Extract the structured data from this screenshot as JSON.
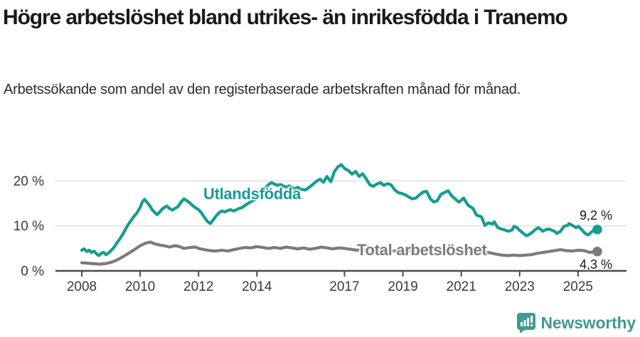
{
  "header": {
    "title": "Högre arbetslöshet bland utrikes- än inrikesfödda i Tranemo",
    "subtitle": "Arbetssökande som andel av den registerbaserade arbetskraften månad för månad."
  },
  "footer": {
    "brand": "Newsworthy"
  },
  "colors": {
    "foreign_line": "#169c91",
    "total_line": "#7b7b7b",
    "grid": "#e2e2e2",
    "axis": "#4a4a4a",
    "tick_label": "#3a3a3a",
    "title_text": "#1a1a1a",
    "brand_teal": "#3f9a92"
  },
  "chart_data": {
    "type": "line",
    "title": "Högre arbetslöshet bland utrikes- än inrikesfödda i Tranemo",
    "subtitle": "Arbetssökande som andel av den registerbaserade arbetskraften månad för månad.",
    "grid": "horizontal-only",
    "legend": "inline-labels",
    "x_axis": {
      "range": [
        2007.55,
        2026.1
      ],
      "ticks": [
        {
          "year": 2008,
          "label": "2008"
        },
        {
          "year": 2010,
          "label": "2010"
        },
        {
          "year": 2012,
          "label": "2012"
        },
        {
          "year": 2014,
          "label": "2014"
        },
        {
          "year": 2017,
          "label": "2017"
        },
        {
          "year": 2019,
          "label": "2019"
        },
        {
          "year": 2021,
          "label": "2021"
        },
        {
          "year": 2023,
          "label": "2023"
        },
        {
          "year": 2025,
          "label": "2025"
        }
      ]
    },
    "y_axis": {
      "unit": "%",
      "range": [
        0,
        24
      ],
      "ticks": [
        {
          "value": 0,
          "label": "0 %"
        },
        {
          "value": 10,
          "label": "10 %"
        },
        {
          "value": 20,
          "label": "20 %"
        }
      ]
    },
    "series": [
      {
        "name": "Utlandsfödda",
        "label": "Utlandsfödda",
        "color": "#169c91",
        "end_value": 9.2,
        "end_label": "9,2 %",
        "points": [
          [
            2008.0,
            4.6
          ],
          [
            2008.08,
            4.9
          ],
          [
            2008.17,
            4.3
          ],
          [
            2008.25,
            4.6
          ],
          [
            2008.33,
            4.1
          ],
          [
            2008.42,
            4.4
          ],
          [
            2008.5,
            3.8
          ],
          [
            2008.58,
            3.4
          ],
          [
            2008.67,
            3.9
          ],
          [
            2008.75,
            4.1
          ],
          [
            2008.83,
            3.6
          ],
          [
            2008.92,
            4.0
          ],
          [
            2009.0,
            4.5
          ],
          [
            2009.1,
            5.2
          ],
          [
            2009.2,
            6.2
          ],
          [
            2009.3,
            7.1
          ],
          [
            2009.4,
            8.1
          ],
          [
            2009.5,
            9.3
          ],
          [
            2009.6,
            10.4
          ],
          [
            2009.7,
            11.3
          ],
          [
            2009.8,
            12.2
          ],
          [
            2009.9,
            13.0
          ],
          [
            2010.0,
            14.1
          ],
          [
            2010.08,
            15.4
          ],
          [
            2010.15,
            15.9
          ],
          [
            2010.25,
            15.1
          ],
          [
            2010.33,
            14.5
          ],
          [
            2010.42,
            13.5
          ],
          [
            2010.5,
            13.0
          ],
          [
            2010.58,
            12.5
          ],
          [
            2010.67,
            13.1
          ],
          [
            2010.75,
            13.7
          ],
          [
            2010.83,
            14.1
          ],
          [
            2010.92,
            14.4
          ],
          [
            2011.0,
            13.9
          ],
          [
            2011.1,
            13.5
          ],
          [
            2011.2,
            13.9
          ],
          [
            2011.3,
            14.3
          ],
          [
            2011.4,
            15.3
          ],
          [
            2011.5,
            16.0
          ],
          [
            2011.6,
            15.6
          ],
          [
            2011.7,
            15.1
          ],
          [
            2011.8,
            14.5
          ],
          [
            2011.9,
            14.0
          ],
          [
            2012.0,
            13.6
          ],
          [
            2012.1,
            12.9
          ],
          [
            2012.2,
            11.9
          ],
          [
            2012.3,
            11.0
          ],
          [
            2012.4,
            10.5
          ],
          [
            2012.5,
            11.3
          ],
          [
            2012.6,
            12.2
          ],
          [
            2012.7,
            12.9
          ],
          [
            2012.8,
            13.3
          ],
          [
            2012.9,
            13.1
          ],
          [
            2013.0,
            13.4
          ],
          [
            2013.1,
            13.6
          ],
          [
            2013.2,
            13.3
          ],
          [
            2013.3,
            13.6
          ],
          [
            2013.4,
            13.9
          ],
          [
            2013.5,
            14.1
          ],
          [
            2013.6,
            14.6
          ],
          [
            2013.7,
            15.0
          ],
          [
            2013.8,
            15.4
          ],
          [
            2013.9,
            15.7
          ],
          [
            2014.0,
            16.1
          ],
          [
            2014.1,
            16.9
          ],
          [
            2014.2,
            17.7
          ],
          [
            2014.3,
            18.5
          ],
          [
            2014.4,
            19.2
          ],
          [
            2014.5,
            19.6
          ],
          [
            2014.6,
            19.3
          ],
          [
            2014.7,
            19.0
          ],
          [
            2014.8,
            19.2
          ],
          [
            2014.9,
            18.9
          ],
          [
            2015.0,
            18.6
          ],
          [
            2015.1,
            18.9
          ],
          [
            2015.2,
            18.5
          ],
          [
            2015.3,
            18.2
          ],
          [
            2015.4,
            18.6
          ],
          [
            2015.5,
            18.1
          ],
          [
            2015.67,
            18.0
          ],
          [
            2015.84,
            18.8
          ],
          [
            2016.04,
            19.9
          ],
          [
            2016.16,
            20.4
          ],
          [
            2016.28,
            19.7
          ],
          [
            2016.4,
            21.0
          ],
          [
            2016.53,
            19.8
          ],
          [
            2016.65,
            22.0
          ],
          [
            2016.77,
            23.1
          ],
          [
            2016.89,
            23.6
          ],
          [
            2017.01,
            22.7
          ],
          [
            2017.13,
            22.3
          ],
          [
            2017.26,
            21.5
          ],
          [
            2017.38,
            22.1
          ],
          [
            2017.5,
            21.0
          ],
          [
            2017.62,
            21.6
          ],
          [
            2017.74,
            20.5
          ],
          [
            2017.87,
            19.1
          ],
          [
            2017.99,
            18.8
          ],
          [
            2018.11,
            19.3
          ],
          [
            2018.23,
            19.6
          ],
          [
            2018.35,
            19.0
          ],
          [
            2018.48,
            19.4
          ],
          [
            2018.6,
            19.1
          ],
          [
            2018.72,
            18.0
          ],
          [
            2018.84,
            17.4
          ],
          [
            2018.96,
            17.2
          ],
          [
            2019.08,
            16.9
          ],
          [
            2019.21,
            16.4
          ],
          [
            2019.33,
            16.0
          ],
          [
            2019.45,
            16.2
          ],
          [
            2019.57,
            16.9
          ],
          [
            2019.69,
            17.5
          ],
          [
            2019.81,
            17.7
          ],
          [
            2019.94,
            16.0
          ],
          [
            2020.06,
            15.3
          ],
          [
            2020.18,
            15.6
          ],
          [
            2020.3,
            17.0
          ],
          [
            2020.42,
            17.4
          ],
          [
            2020.55,
            17.8
          ],
          [
            2020.67,
            16.7
          ],
          [
            2020.79,
            16.0
          ],
          [
            2020.91,
            15.3
          ],
          [
            2020.98,
            15.6
          ],
          [
            2021.08,
            16.2
          ],
          [
            2021.23,
            14.6
          ],
          [
            2021.4,
            13.9
          ],
          [
            2021.52,
            12.4
          ],
          [
            2021.69,
            12.0
          ],
          [
            2021.81,
            10.1
          ],
          [
            2021.93,
            10.7
          ],
          [
            2022.06,
            10.4
          ],
          [
            2022.13,
            10.9
          ],
          [
            2022.25,
            9.6
          ],
          [
            2022.37,
            9.3
          ],
          [
            2022.49,
            9.1
          ],
          [
            2022.62,
            8.8
          ],
          [
            2022.74,
            9.1
          ],
          [
            2022.81,
            9.9
          ],
          [
            2022.91,
            9.6
          ],
          [
            2022.98,
            9.1
          ],
          [
            2023.1,
            8.5
          ],
          [
            2023.23,
            7.8
          ],
          [
            2023.3,
            8.0
          ],
          [
            2023.42,
            8.5
          ],
          [
            2023.52,
            9.1
          ],
          [
            2023.64,
            9.6
          ],
          [
            2023.71,
            9.3
          ],
          [
            2023.79,
            8.8
          ],
          [
            2023.88,
            9.1
          ],
          [
            2024.01,
            9.3
          ],
          [
            2024.08,
            9.1
          ],
          [
            2024.2,
            8.8
          ],
          [
            2024.27,
            8.3
          ],
          [
            2024.4,
            8.8
          ],
          [
            2024.52,
            9.9
          ],
          [
            2024.64,
            10.1
          ],
          [
            2024.69,
            10.5
          ],
          [
            2024.81,
            10.1
          ],
          [
            2024.93,
            9.6
          ],
          [
            2025.01,
            9.9
          ],
          [
            2025.1,
            9.3
          ],
          [
            2025.25,
            8.3
          ],
          [
            2025.35,
            8.0
          ],
          [
            2025.49,
            8.8
          ],
          [
            2025.66,
            9.2
          ]
        ]
      },
      {
        "name": "Total arbetslöshet",
        "label": "Total arbetslöshet",
        "color": "#7b7b7b",
        "end_value": 4.3,
        "end_label": "4,3 %",
        "points": [
          [
            2008.0,
            1.8
          ],
          [
            2008.2,
            1.7
          ],
          [
            2008.4,
            1.6
          ],
          [
            2008.6,
            1.5
          ],
          [
            2008.8,
            1.6
          ],
          [
            2009.0,
            1.9
          ],
          [
            2009.2,
            2.4
          ],
          [
            2009.4,
            3.1
          ],
          [
            2009.6,
            3.9
          ],
          [
            2009.8,
            4.7
          ],
          [
            2010.0,
            5.6
          ],
          [
            2010.2,
            6.2
          ],
          [
            2010.35,
            6.4
          ],
          [
            2010.5,
            6.0
          ],
          [
            2010.7,
            5.7
          ],
          [
            2010.9,
            5.5
          ],
          [
            2011.0,
            5.3
          ],
          [
            2011.2,
            5.6
          ],
          [
            2011.35,
            5.4
          ],
          [
            2011.5,
            5.0
          ],
          [
            2011.7,
            5.2
          ],
          [
            2011.9,
            5.3
          ],
          [
            2012.0,
            5.0
          ],
          [
            2012.2,
            4.7
          ],
          [
            2012.4,
            4.5
          ],
          [
            2012.6,
            4.4
          ],
          [
            2012.8,
            4.6
          ],
          [
            2013.0,
            4.4
          ],
          [
            2013.2,
            4.7
          ],
          [
            2013.4,
            5.0
          ],
          [
            2013.6,
            5.2
          ],
          [
            2013.8,
            5.1
          ],
          [
            2014.0,
            5.4
          ],
          [
            2014.2,
            5.2
          ],
          [
            2014.4,
            5.0
          ],
          [
            2014.6,
            5.2
          ],
          [
            2014.8,
            5.0
          ],
          [
            2015.0,
            5.3
          ],
          [
            2015.2,
            5.1
          ],
          [
            2015.4,
            4.9
          ],
          [
            2015.6,
            5.1
          ],
          [
            2015.8,
            4.8
          ],
          [
            2016.0,
            5.0
          ],
          [
            2016.2,
            5.3
          ],
          [
            2016.4,
            5.1
          ],
          [
            2016.6,
            4.9
          ],
          [
            2016.8,
            5.1
          ],
          [
            2017.0,
            5.0
          ],
          [
            2017.2,
            4.8
          ],
          [
            2017.4,
            4.6
          ],
          [
            2017.6,
            4.7
          ],
          [
            2017.8,
            4.5
          ],
          [
            2018.0,
            4.6
          ],
          [
            2018.3,
            4.5
          ],
          [
            2018.6,
            4.4
          ],
          [
            2018.9,
            4.5
          ],
          [
            2019.2,
            4.4
          ],
          [
            2019.5,
            4.5
          ],
          [
            2019.8,
            4.6
          ],
          [
            2020.1,
            4.8
          ],
          [
            2020.4,
            5.0
          ],
          [
            2020.7,
            4.8
          ],
          [
            2021.0,
            4.6
          ],
          [
            2021.3,
            4.4
          ],
          [
            2021.6,
            4.2
          ],
          [
            2021.9,
            4.1
          ],
          [
            2022.0,
            4.0
          ],
          [
            2022.2,
            3.7
          ],
          [
            2022.4,
            3.5
          ],
          [
            2022.6,
            3.4
          ],
          [
            2022.8,
            3.5
          ],
          [
            2023.0,
            3.4
          ],
          [
            2023.2,
            3.5
          ],
          [
            2023.4,
            3.6
          ],
          [
            2023.6,
            3.9
          ],
          [
            2023.8,
            4.1
          ],
          [
            2024.0,
            4.3
          ],
          [
            2024.2,
            4.5
          ],
          [
            2024.4,
            4.7
          ],
          [
            2024.6,
            4.5
          ],
          [
            2024.8,
            4.4
          ],
          [
            2025.0,
            4.6
          ],
          [
            2025.2,
            4.5
          ],
          [
            2025.4,
            4.1
          ],
          [
            2025.66,
            4.3
          ]
        ]
      }
    ]
  }
}
